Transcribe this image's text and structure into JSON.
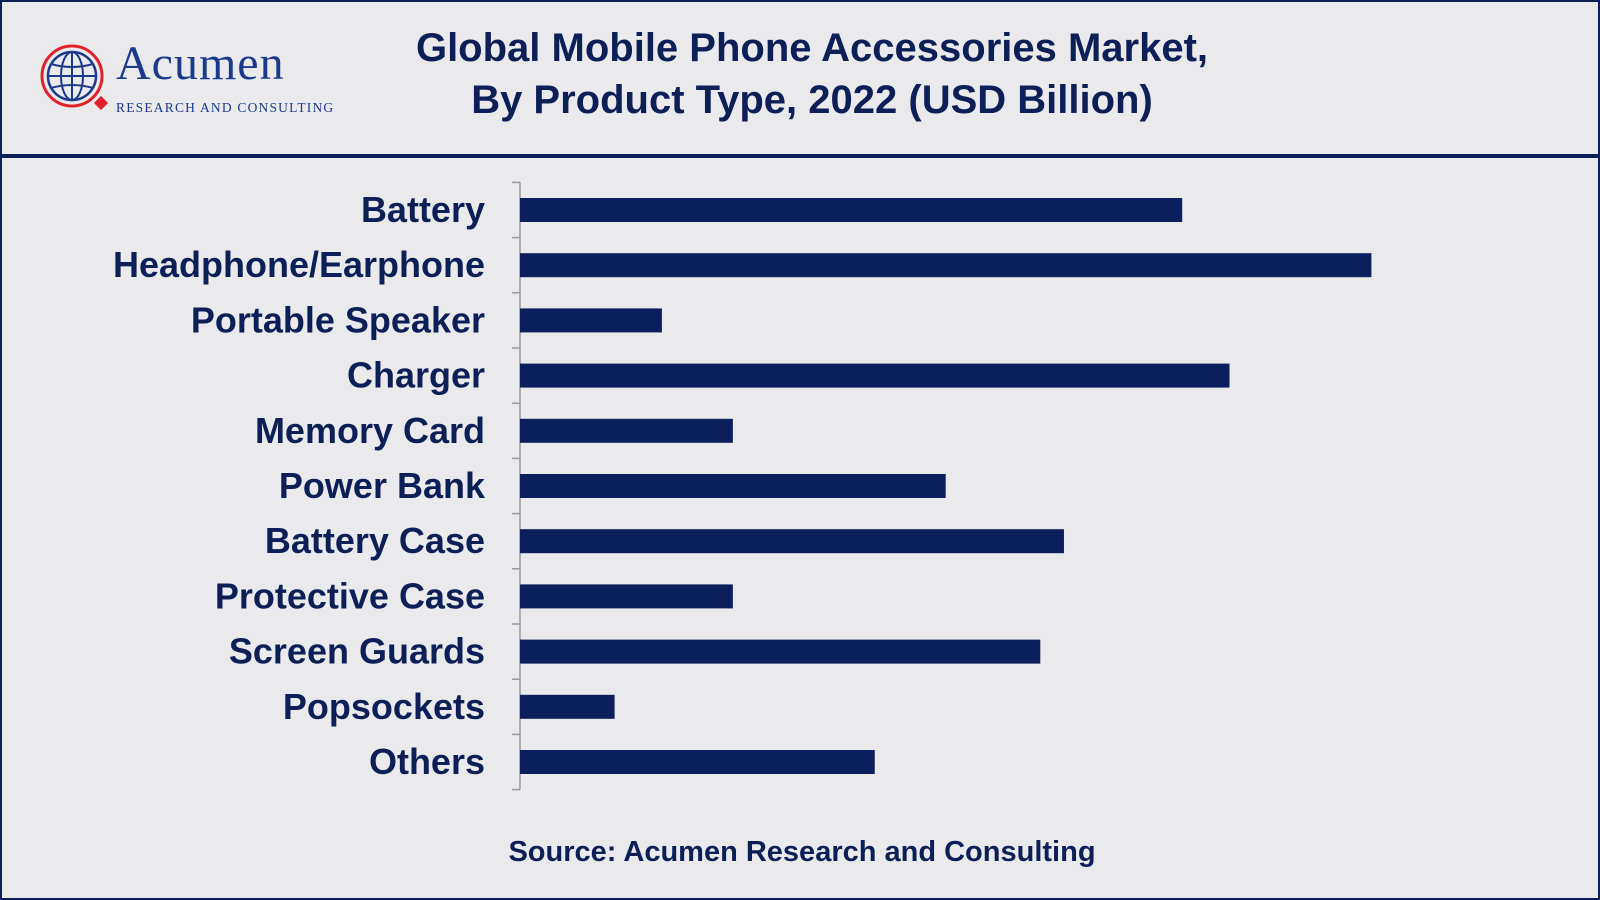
{
  "header": {
    "logo": {
      "word": "Acumen",
      "subtitle": "RESEARCH AND CONSULTING"
    },
    "title_line1": "Global Mobile Phone Accessories Market,",
    "title_line2": "By Product Type, 2022 (USD Billion)"
  },
  "colors": {
    "bar": "#0b1f5c",
    "text": "#0d1f57",
    "axis": "#9a9a9a",
    "logo_blue": "#1b3a8c",
    "logo_red": "#e0202a"
  },
  "chart_data": {
    "type": "bar",
    "orientation": "horizontal",
    "title": "Global Mobile Phone Accessories Market, By Product Type, 2022 (USD Billion)",
    "xlabel": "",
    "ylabel": "",
    "xlim": [
      0,
      20
    ],
    "grid": false,
    "legend": "none",
    "categories": [
      "Battery",
      "Headphone/Earphone",
      "Portable Speaker",
      "Charger",
      "Memory Card",
      "Power Bank",
      "Battery Case",
      "Protective Case",
      "Screen Guards",
      "Popsockets",
      "Others"
    ],
    "values": [
      14.0,
      18.0,
      3.0,
      15.0,
      4.5,
      9.0,
      11.5,
      4.5,
      11.0,
      2.0,
      7.5
    ]
  },
  "source": "Source: Acumen Research and Consulting"
}
